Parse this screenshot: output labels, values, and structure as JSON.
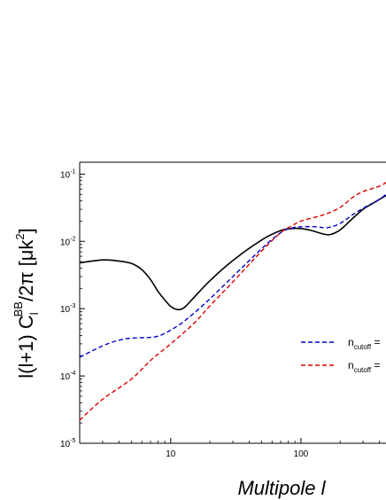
{
  "chart_data": {
    "type": "line",
    "title": "",
    "xlabel": "Multipole l",
    "ylabel": {
      "main": "l(l+1) C",
      "sub": "l",
      "sup": "BB",
      "rest": "/2π  [μk",
      "sup2": "2",
      "close": "]"
    },
    "xscale": "log",
    "yscale": "log",
    "xlim": [
      2,
      450
    ],
    "ylim": [
      1e-05,
      0.15
    ],
    "x_ticks": [
      {
        "value": 10,
        "label": "10"
      },
      {
        "value": 100,
        "label": "100"
      }
    ],
    "y_ticks": [
      {
        "value": 1e-05,
        "base": "10",
        "exp": "-5"
      },
      {
        "value": 0.0001,
        "base": "10",
        "exp": "-4"
      },
      {
        "value": 0.001,
        "base": "10",
        "exp": "-3"
      },
      {
        "value": 0.01,
        "base": "10",
        "exp": "-2"
      },
      {
        "value": 0.1,
        "base": "10",
        "exp": "-1"
      }
    ],
    "legend": [
      {
        "label": "n",
        "sub": "cutoff",
        "suffix": " =",
        "color": "#0000cc",
        "dash": "dashed"
      },
      {
        "label": "n",
        "sub": "cutoff",
        "suffix": " =",
        "color": "#e00000",
        "dash": "dashed"
      }
    ],
    "series": [
      {
        "color": "#000000",
        "style": "solid",
        "points": [
          [
            2,
            0.0048
          ],
          [
            3,
            0.0053
          ],
          [
            4,
            0.0051
          ],
          [
            5,
            0.0047
          ],
          [
            6,
            0.0038
          ],
          [
            7,
            0.0027
          ],
          [
            8,
            0.0018
          ],
          [
            9,
            0.00135
          ],
          [
            10,
            0.00108
          ],
          [
            11,
            0.00098
          ],
          [
            12,
            0.00098
          ],
          [
            13,
            0.00108
          ],
          [
            15,
            0.00145
          ],
          [
            20,
            0.0026
          ],
          [
            30,
            0.0052
          ],
          [
            50,
            0.0105
          ],
          [
            70,
            0.0145
          ],
          [
            85,
            0.0155
          ],
          [
            100,
            0.0155
          ],
          [
            120,
            0.0145
          ],
          [
            150,
            0.0128
          ],
          [
            170,
            0.0127
          ],
          [
            200,
            0.0148
          ],
          [
            250,
            0.022
          ],
          [
            300,
            0.03
          ],
          [
            350,
            0.036
          ],
          [
            400,
            0.042
          ],
          [
            450,
            0.048
          ]
        ]
      },
      {
        "color": "#0000cc",
        "style": "dashed",
        "points": [
          [
            2,
            0.00019
          ],
          [
            3,
            0.00028
          ],
          [
            4,
            0.00034
          ],
          [
            5,
            0.000365
          ],
          [
            6,
            0.00037
          ],
          [
            7,
            0.000375
          ],
          [
            8,
            0.00039
          ],
          [
            9,
            0.00043
          ],
          [
            10,
            0.00048
          ],
          [
            12,
            0.0006
          ],
          [
            15,
            0.00085
          ],
          [
            20,
            0.0014
          ],
          [
            30,
            0.003
          ],
          [
            50,
            0.0078
          ],
          [
            70,
            0.0135
          ],
          [
            85,
            0.0158
          ],
          [
            100,
            0.0165
          ],
          [
            130,
            0.0165
          ],
          [
            160,
            0.016
          ],
          [
            200,
            0.0185
          ],
          [
            250,
            0.025
          ],
          [
            300,
            0.031
          ],
          [
            400,
            0.042
          ],
          [
            450,
            0.05
          ]
        ]
      },
      {
        "color": "#e00000",
        "style": "dashed",
        "points": [
          [
            2,
            2.2e-05
          ],
          [
            3,
            4.5e-05
          ],
          [
            5,
            9e-05
          ],
          [
            7,
            0.00017
          ],
          [
            10,
            0.0003
          ],
          [
            15,
            0.0006
          ],
          [
            20,
            0.0011
          ],
          [
            30,
            0.0025
          ],
          [
            50,
            0.0072
          ],
          [
            70,
            0.0135
          ],
          [
            85,
            0.017
          ],
          [
            100,
            0.02
          ],
          [
            130,
            0.023
          ],
          [
            160,
            0.026
          ],
          [
            200,
            0.032
          ],
          [
            250,
            0.045
          ],
          [
            300,
            0.055
          ],
          [
            400,
            0.066
          ],
          [
            450,
            0.075
          ]
        ]
      }
    ]
  }
}
